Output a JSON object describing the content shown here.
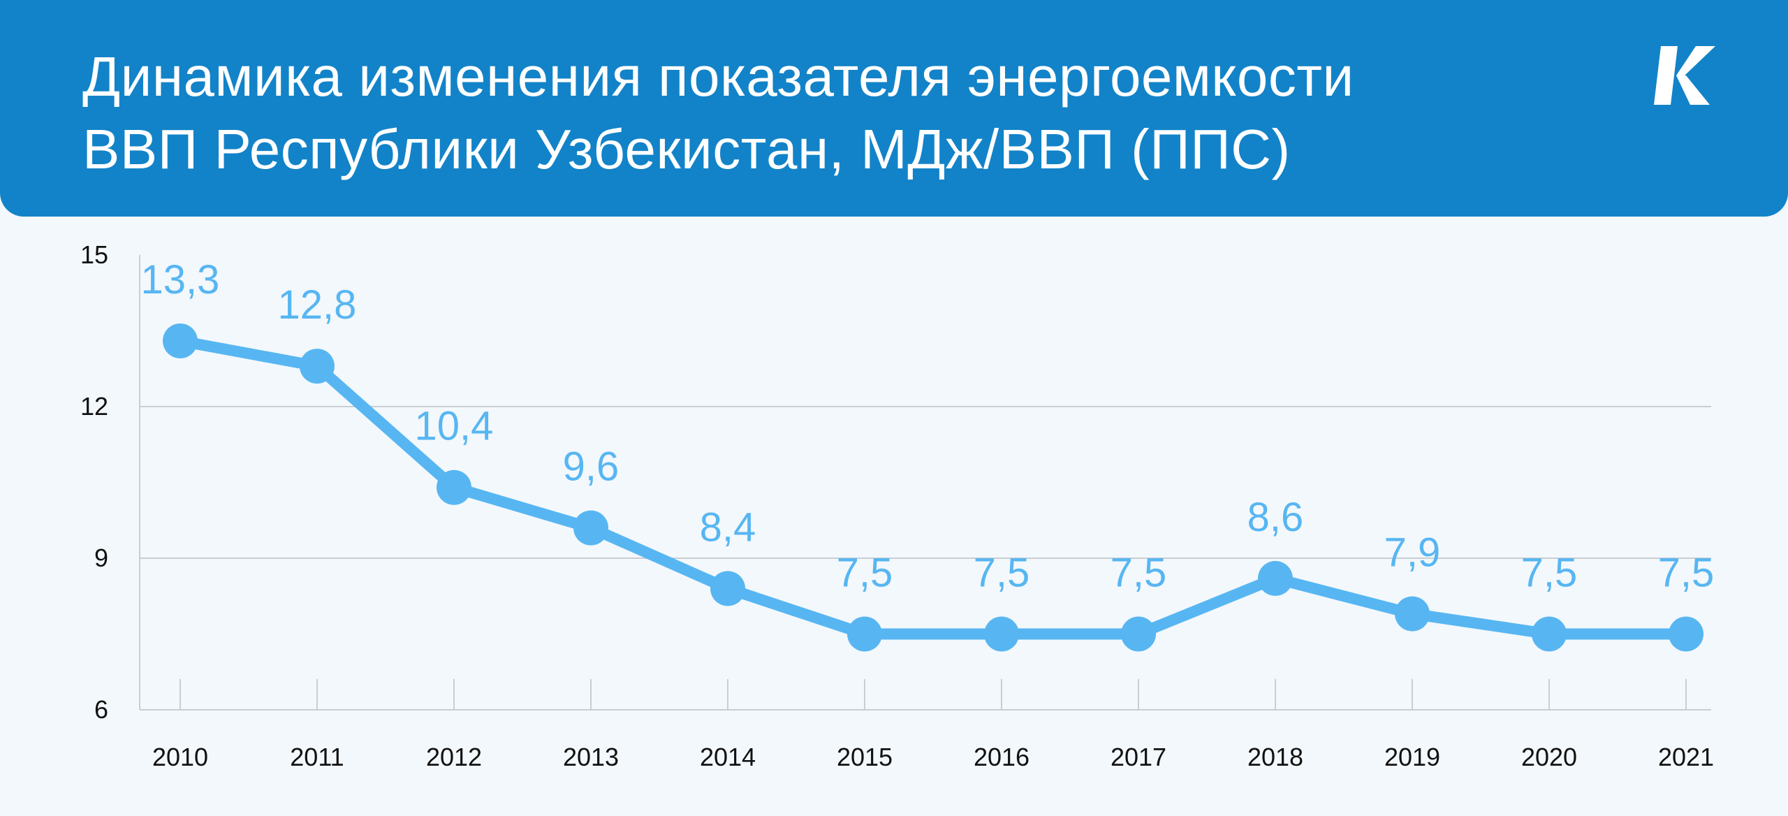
{
  "header": {
    "title_line1": "Динамика изменения показателя энергоемкости",
    "title_line2": "ВВП Республики Узбекистан, МДж/ВВП (ППС)",
    "logo_letter": "K",
    "background_color": "#1283c8"
  },
  "chart_data": {
    "type": "line",
    "title": "Динамика изменения показателя энергоемкости ВВП Республики Узбекистан, МДж/ВВП (ППС)",
    "categories": [
      "2010",
      "2011",
      "2012",
      "2013",
      "2014",
      "2015",
      "2016",
      "2017",
      "2018",
      "2019",
      "2020",
      "2021"
    ],
    "values": [
      13.3,
      12.8,
      10.4,
      9.6,
      8.4,
      7.5,
      7.5,
      7.5,
      8.6,
      7.9,
      7.5,
      7.5
    ],
    "value_labels": [
      "13,3",
      "12,8",
      "10,4",
      "9,6",
      "8,4",
      "7,5",
      "7,5",
      "7,5",
      "8,6",
      "7,9",
      "7,5",
      "7,5"
    ],
    "y_ticks": [
      "15",
      "12",
      "9",
      "6"
    ],
    "ylim": [
      6,
      15
    ],
    "grid": true,
    "line_color": "#57b6f2",
    "xlabel": "",
    "ylabel": ""
  }
}
